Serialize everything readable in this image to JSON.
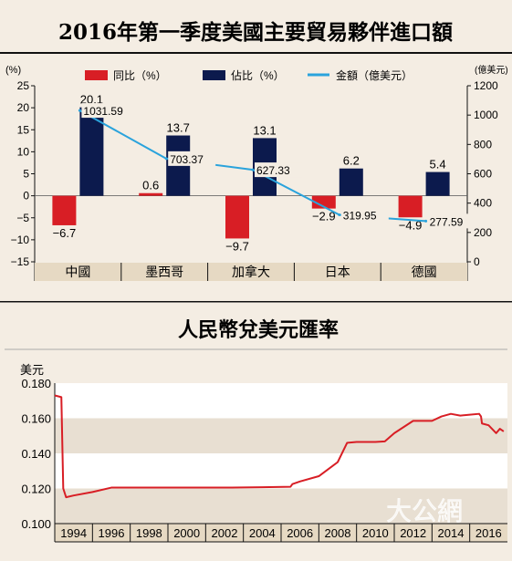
{
  "chart_data": [
    {
      "type": "bar",
      "title": "2016年第一季度美國主要貿易夥伴進口額",
      "y_left_unit": "(%)",
      "y_right_unit": "(億美元)",
      "categories": [
        "中國",
        "墨西哥",
        "加拿大",
        "日本",
        "德國"
      ],
      "y_left_ticks": [
        "25",
        "20",
        "15",
        "10",
        "5",
        "0",
        "−5",
        "−10",
        "−15"
      ],
      "y_right_ticks": [
        "1200",
        "1000",
        "800",
        "600",
        "400",
        "200",
        "0"
      ],
      "ylim_left": [
        -15,
        25
      ],
      "ylim_right": [
        0,
        1200
      ],
      "series": [
        {
          "name": "同比（%）",
          "kind": "bar",
          "axis": "left",
          "color": "#d81e25",
          "values": [
            -6.7,
            0.6,
            -9.7,
            -2.9,
            -4.9
          ],
          "labels": [
            "−6.7",
            "0.6",
            "−9.7",
            "−2.9",
            "−4.9"
          ]
        },
        {
          "name": "佔比（%）",
          "kind": "bar",
          "axis": "left",
          "color": "#0c1a4d",
          "values": [
            20.1,
            13.7,
            13.1,
            6.2,
            5.4
          ],
          "labels": [
            "20.1",
            "13.7",
            "13.1",
            "6.2",
            "5.4"
          ]
        },
        {
          "name": "金額（億美元）",
          "kind": "line",
          "axis": "right",
          "color": "#2aa3dc",
          "values": [
            1031.59,
            703.37,
            627.33,
            319.95,
            277.59
          ],
          "labels": [
            "1031.59",
            "703.37",
            "627.33",
            "319.95",
            "277.59"
          ]
        }
      ],
      "grid": false,
      "legend_position": "top"
    },
    {
      "type": "line",
      "title": "人民幣兌美元匯率",
      "ylabel": "美元",
      "xlim": [
        1993,
        2017
      ],
      "ylim": [
        0.1,
        0.18
      ],
      "x_ticks": [
        "1994",
        "1996",
        "1998",
        "2000",
        "2002",
        "2004",
        "2006",
        "2008",
        "2010",
        "2012",
        "2014",
        "2016"
      ],
      "y_ticks": [
        "0.180",
        "0.160",
        "0.140",
        "0.120",
        "0.100"
      ],
      "color": "#d81e25",
      "x": [
        1993.0,
        1993.35,
        1993.45,
        1993.6,
        1994.0,
        1995.0,
        1996.0,
        1997.0,
        1998.0,
        2000.0,
        2002.0,
        2004.0,
        2005.5,
        2005.6,
        2006.0,
        2007.0,
        2008.0,
        2008.5,
        2009.0,
        2010.0,
        2010.5,
        2011.0,
        2012.0,
        2013.0,
        2013.5,
        2014.0,
        2014.5,
        2015.0,
        2015.5,
        2015.6,
        2015.65,
        2016.0,
        2016.4,
        2016.6,
        2016.8
      ],
      "y": [
        0.173,
        0.172,
        0.12,
        0.115,
        0.116,
        0.118,
        0.1205,
        0.1205,
        0.1205,
        0.1205,
        0.1205,
        0.1207,
        0.121,
        0.1225,
        0.124,
        0.127,
        0.135,
        0.146,
        0.1465,
        0.1465,
        0.1468,
        0.1515,
        0.1585,
        0.1585,
        0.161,
        0.1625,
        0.1615,
        0.162,
        0.1625,
        0.161,
        0.157,
        0.156,
        0.1515,
        0.154,
        0.1525
      ],
      "grid": true,
      "grid_style": "alternating white and shaded horizontal bands"
    }
  ],
  "watermark": "大公網"
}
